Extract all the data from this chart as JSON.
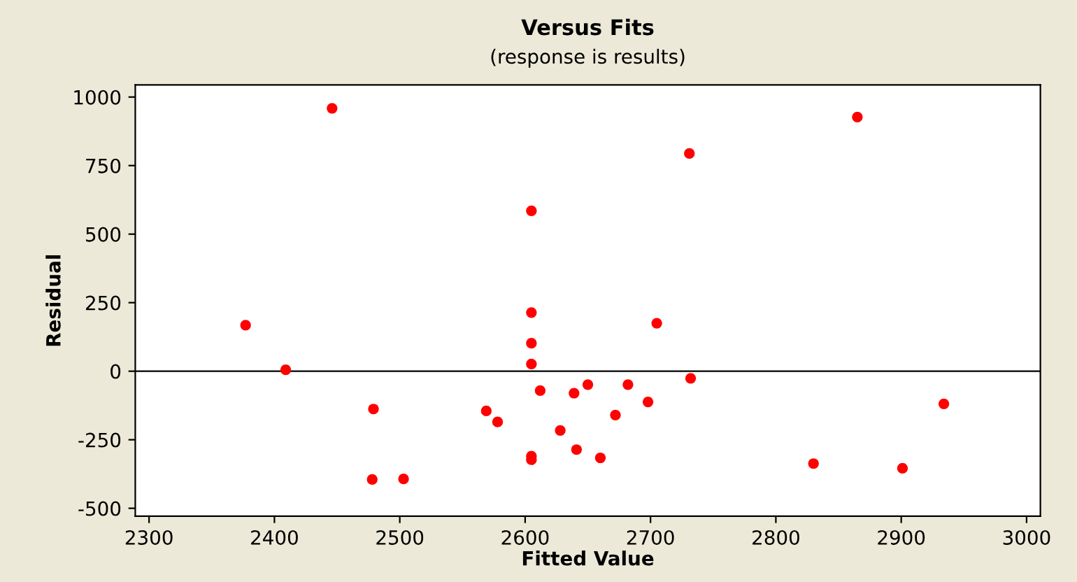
{
  "chart_data": {
    "type": "scatter",
    "title": "Versus Fits",
    "subtitle": "(response is results)",
    "xlabel": "Fitted Value",
    "ylabel": "Residual",
    "x": [
      2377,
      2409,
      2446,
      2479,
      2478,
      2503,
      2569,
      2578,
      2605,
      2605,
      2605,
      2605,
      2605,
      2605,
      2612,
      2628,
      2639,
      2641,
      2650,
      2660,
      2672,
      2682,
      2698,
      2705,
      2731,
      2732,
      2865,
      2830,
      2901,
      2934
    ],
    "values": [
      168,
      5,
      959,
      -138,
      -395,
      -393,
      -145,
      -185,
      585,
      214,
      102,
      26,
      -310,
      -323,
      -71,
      -216,
      -80,
      -286,
      -49,
      -316,
      -160,
      -49,
      -112,
      175,
      794,
      -26,
      927,
      -337,
      -354,
      -119
    ],
    "color": "#ff0000",
    "marker": "circle",
    "xlim": [
      2289,
      3011
    ],
    "ylim": [
      -529,
      1044
    ],
    "xticks": [
      2300,
      2400,
      2500,
      2600,
      2700,
      2800,
      2900,
      3000
    ],
    "yticks": [
      -500,
      -250,
      0,
      250,
      500,
      750,
      1000
    ],
    "ref_lines": [
      {
        "axis": "y",
        "value": 0,
        "color": "#000000"
      }
    ],
    "grid": false
  }
}
